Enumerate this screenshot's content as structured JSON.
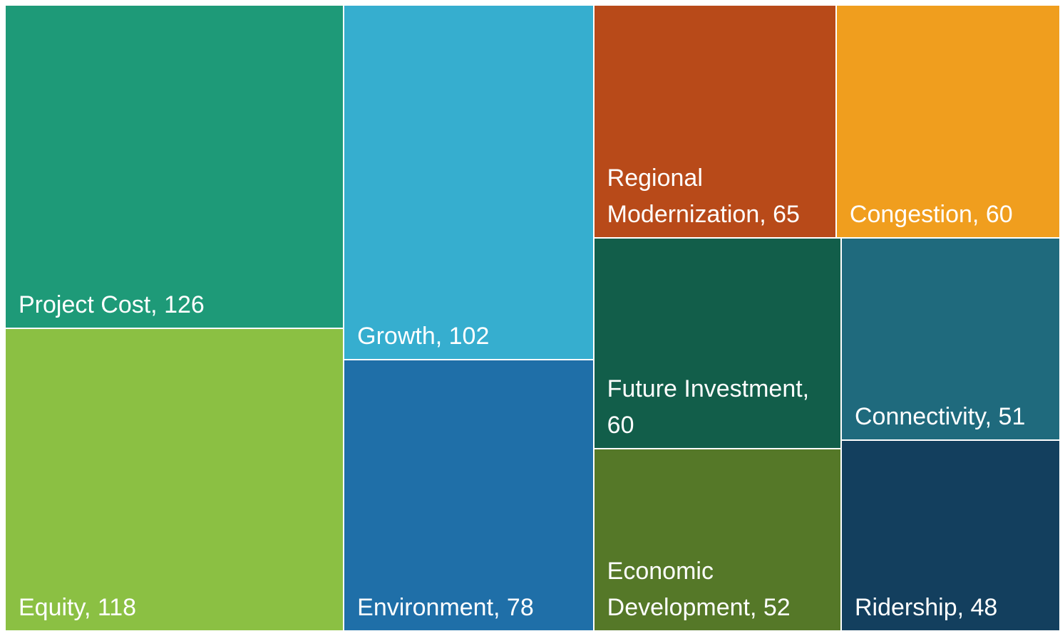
{
  "chart_data": {
    "type": "treemap",
    "values": [
      126,
      118,
      102,
      78,
      65,
      60,
      60,
      52,
      51,
      48
    ],
    "value_labels": [
      "Project Cost, 126",
      "Equity, 118",
      "Growth, 102",
      "Environment, 78",
      "Regional Modernization, 65",
      "Congestion, 60",
      "Future Investment, 60",
      "Economic Development, 52",
      "Connectivity, 51",
      "Ridership, 48"
    ],
    "colors": [
      "#1e9a78",
      "#8bc043",
      "#36aecf",
      "#1f6fa8",
      "#b84a19",
      "#f09e1e",
      "#125e4a",
      "#557828",
      "#1f6a7d",
      "#133f5e"
    ]
  }
}
